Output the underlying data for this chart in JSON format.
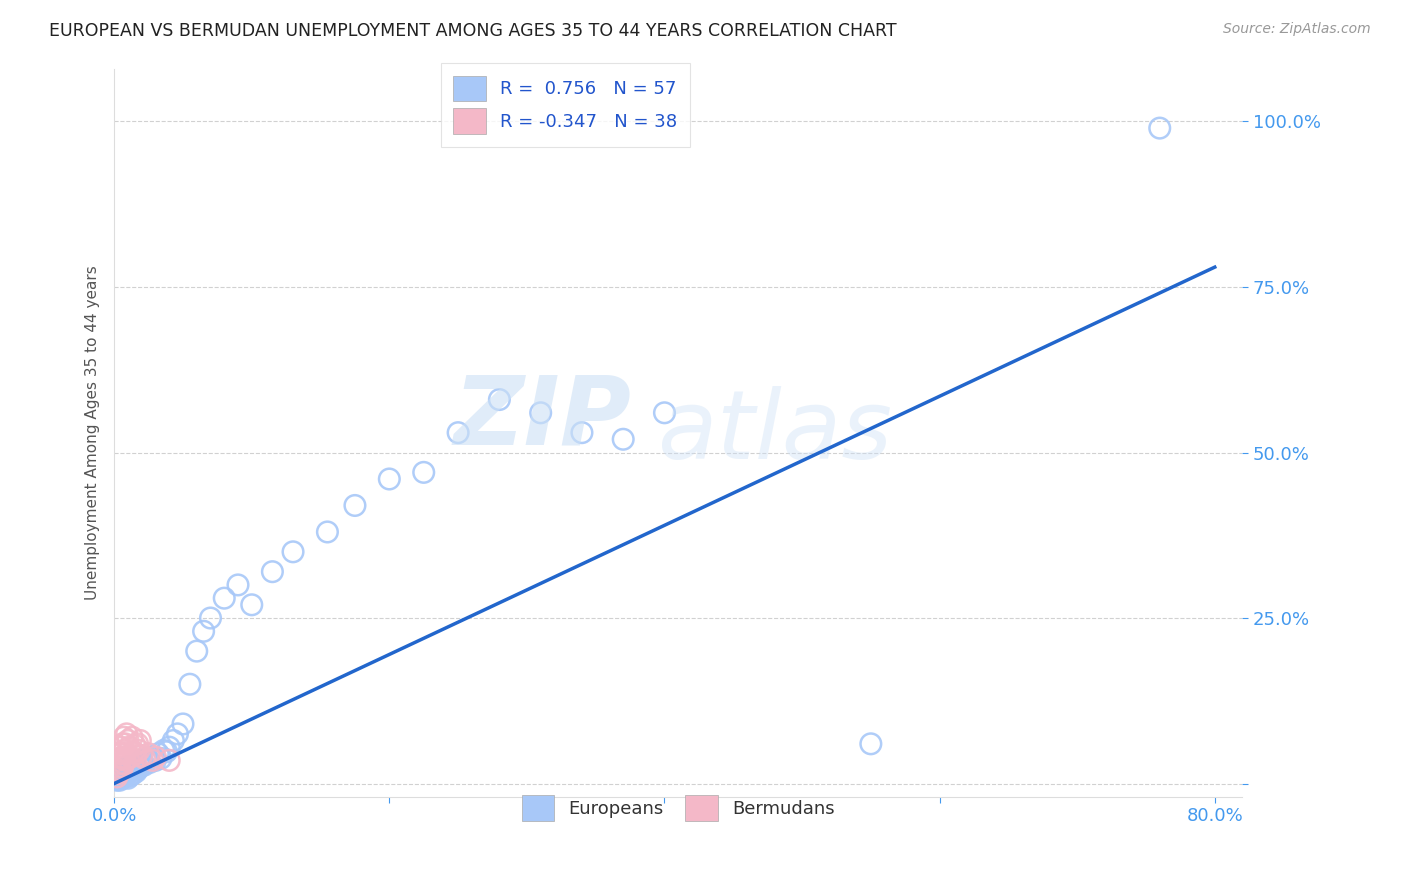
{
  "title": "EUROPEAN VS BERMUDAN UNEMPLOYMENT AMONG AGES 35 TO 44 YEARS CORRELATION CHART",
  "source": "Source: ZipAtlas.com",
  "ylabel": "Unemployment Among Ages 35 to 44 years",
  "xlim": [
    0,
    0.82
  ],
  "ylim": [
    -0.02,
    1.08
  ],
  "european_R": 0.756,
  "european_N": 57,
  "bermudan_R": -0.347,
  "bermudan_N": 38,
  "european_color": "#a8c8f8",
  "bermudan_color": "#f4b8c8",
  "line_color": "#2266cc",
  "background_color": "#ffffff",
  "grid_color": "#cccccc",
  "tick_color": "#4499ee",
  "scatter_blue_x": [
    0.002,
    0.003,
    0.004,
    0.005,
    0.005,
    0.006,
    0.007,
    0.007,
    0.008,
    0.008,
    0.009,
    0.01,
    0.01,
    0.011,
    0.012,
    0.013,
    0.014,
    0.015,
    0.016,
    0.017,
    0.018,
    0.019,
    0.02,
    0.022,
    0.024,
    0.026,
    0.028,
    0.03,
    0.032,
    0.034,
    0.036,
    0.038,
    0.04,
    0.043,
    0.046,
    0.05,
    0.055,
    0.06,
    0.065,
    0.07,
    0.08,
    0.09,
    0.1,
    0.115,
    0.13,
    0.155,
    0.175,
    0.2,
    0.225,
    0.25,
    0.28,
    0.31,
    0.34,
    0.37,
    0.4,
    0.55,
    0.76
  ],
  "scatter_blue_y": [
    0.005,
    0.008,
    0.005,
    0.01,
    0.015,
    0.008,
    0.012,
    0.018,
    0.01,
    0.02,
    0.015,
    0.008,
    0.025,
    0.018,
    0.012,
    0.02,
    0.015,
    0.025,
    0.018,
    0.022,
    0.03,
    0.025,
    0.035,
    0.028,
    0.038,
    0.032,
    0.04,
    0.035,
    0.045,
    0.038,
    0.05,
    0.048,
    0.055,
    0.065,
    0.075,
    0.09,
    0.15,
    0.2,
    0.23,
    0.25,
    0.28,
    0.3,
    0.27,
    0.32,
    0.35,
    0.38,
    0.42,
    0.46,
    0.47,
    0.53,
    0.58,
    0.56,
    0.53,
    0.52,
    0.56,
    0.06,
    0.99
  ],
  "scatter_pink_x": [
    0.002,
    0.002,
    0.003,
    0.003,
    0.003,
    0.004,
    0.004,
    0.004,
    0.005,
    0.005,
    0.005,
    0.006,
    0.006,
    0.006,
    0.007,
    0.007,
    0.007,
    0.008,
    0.008,
    0.009,
    0.009,
    0.01,
    0.01,
    0.011,
    0.012,
    0.013,
    0.014,
    0.015,
    0.016,
    0.017,
    0.018,
    0.019,
    0.02,
    0.022,
    0.025,
    0.028,
    0.03,
    0.04
  ],
  "scatter_pink_y": [
    0.01,
    0.02,
    0.015,
    0.025,
    0.035,
    0.018,
    0.03,
    0.045,
    0.02,
    0.038,
    0.055,
    0.025,
    0.04,
    0.06,
    0.03,
    0.05,
    0.07,
    0.035,
    0.06,
    0.045,
    0.075,
    0.038,
    0.065,
    0.055,
    0.04,
    0.07,
    0.048,
    0.058,
    0.045,
    0.06,
    0.05,
    0.065,
    0.042,
    0.038,
    0.045,
    0.035,
    0.04,
    0.035
  ],
  "trendline_x": [
    0.0,
    0.8
  ],
  "trendline_y": [
    0.0,
    0.78
  ],
  "xtick_positions": [
    0.0,
    0.2,
    0.4,
    0.6,
    0.8
  ],
  "xtick_labels": [
    "0.0%",
    "",
    "",
    "",
    "80.0%"
  ],
  "ytick_positions": [
    0.0,
    0.25,
    0.5,
    0.75,
    1.0
  ],
  "ytick_labels": [
    "",
    "25.0%",
    "50.0%",
    "75.0%",
    "100.0%"
  ]
}
